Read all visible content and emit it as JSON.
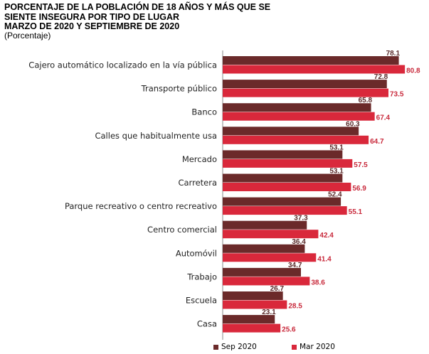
{
  "header": {
    "title_line1": "PORCENTAJE DE LA POBLACIÓN DE 18 AÑOS Y MÁS QUE SE",
    "title_line2": "SIENTE INSEGURA POR TIPO DE LUGAR",
    "title_line3": "MARZO DE 2020 Y SEPTIEMBRE DE 2020",
    "subtitle": "(Porcentaje)"
  },
  "chart_data": {
    "type": "bar",
    "orientation": "horizontal",
    "title": "PORCENTAJE DE LA POBLACIÓN DE 18 AÑOS Y MÁS QUE SE SIENTE INSEGURA POR TIPO DE LUGAR MARZO DE 2020 Y SEPTIEMBRE DE 2020",
    "subtitle": "(Porcentaje)",
    "categories": [
      "Cajero automático localizado en la vía pública",
      "Transporte público",
      "Banco",
      "Calles que habitualmente usa",
      "Mercado",
      "Carretera",
      "Parque recreativo o centro recreativo",
      "Centro comercial",
      "Automóvil",
      "Trabajo",
      "Escuela",
      "Casa"
    ],
    "series": [
      {
        "name": "Sep 2020",
        "color": "#6b2a2a",
        "values": [
          78.1,
          72.8,
          65.8,
          60.3,
          53.1,
          53.1,
          52.4,
          37.3,
          36.4,
          34.7,
          26.7,
          23.1
        ]
      },
      {
        "name": "Mar 2020",
        "color": "#d9283b",
        "values": [
          80.8,
          73.5,
          67.4,
          64.7,
          57.5,
          56.9,
          55.1,
          42.4,
          41.4,
          38.6,
          28.5,
          25.6
        ]
      }
    ],
    "xlim": [
      0,
      100
    ],
    "grid": false,
    "legend_position": "bottom"
  }
}
